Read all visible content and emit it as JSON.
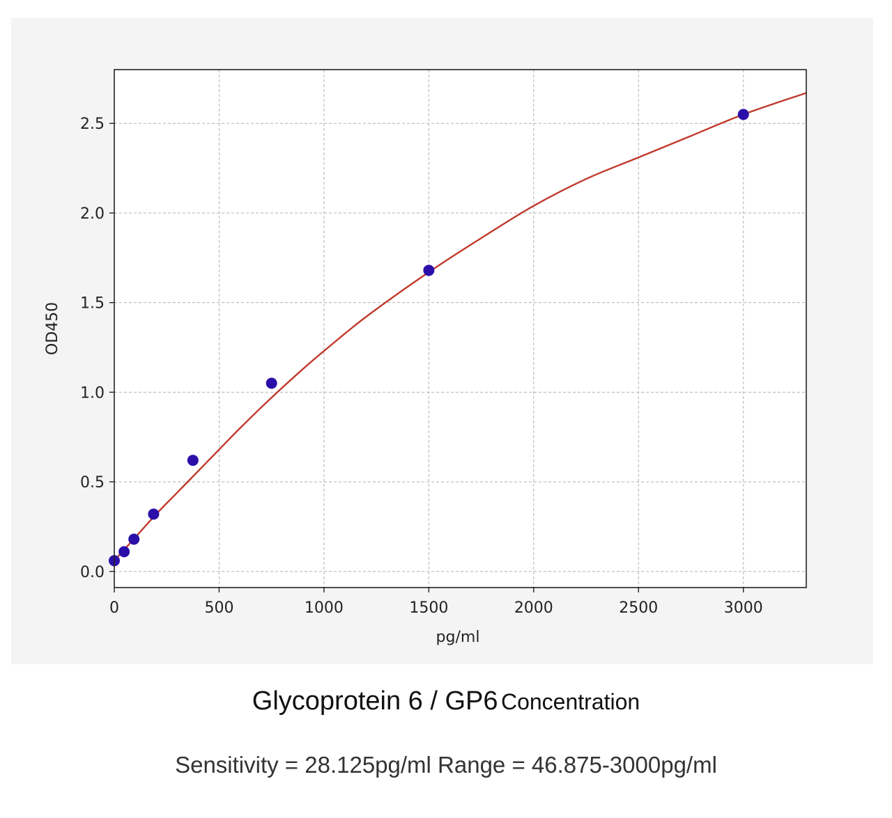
{
  "caption": {
    "title_main": "Glycoprotein 6 / GP6",
    "title_suffix": "Concentration",
    "note": "Sensitivity = 28.125pg/ml Range = 46.875-3000pg/ml"
  },
  "colors": {
    "panel_background": "#f4f4f4",
    "plot_background": "#ffffff",
    "grid": "#b0b0b0",
    "curve": "#c0392b",
    "points": "#2b0fa8"
  },
  "chart_data": {
    "type": "scatter",
    "xlabel": "pg/ml",
    "ylabel": "OD450",
    "xlim": [
      0,
      3300
    ],
    "ylim": [
      -0.09,
      2.8
    ],
    "x_ticks": [
      0,
      500,
      1000,
      1500,
      2000,
      2500,
      3000
    ],
    "x_tick_labels": [
      "0",
      "500",
      "1000",
      "1500",
      "2000",
      "2500",
      "3000"
    ],
    "y_ticks": [
      0.0,
      0.5,
      1.0,
      1.5,
      2.0,
      2.5
    ],
    "y_tick_labels": [
      "0.0",
      "0.5",
      "1.0",
      "1.5",
      "2.0",
      "2.5"
    ],
    "grid": true,
    "grid_style": "dashed",
    "points": [
      {
        "x": 0,
        "y": 0.06
      },
      {
        "x": 46.875,
        "y": 0.11
      },
      {
        "x": 93.75,
        "y": 0.18
      },
      {
        "x": 187.5,
        "y": 0.32
      },
      {
        "x": 375,
        "y": 0.62
      },
      {
        "x": 750,
        "y": 1.05
      },
      {
        "x": 1500,
        "y": 1.68
      },
      {
        "x": 3000,
        "y": 2.55
      }
    ],
    "fit_curve": [
      {
        "x": 0,
        "y": 0.06
      },
      {
        "x": 100,
        "y": 0.19
      },
      {
        "x": 200,
        "y": 0.32
      },
      {
        "x": 300,
        "y": 0.44
      },
      {
        "x": 400,
        "y": 0.56
      },
      {
        "x": 500,
        "y": 0.68
      },
      {
        "x": 600,
        "y": 0.8
      },
      {
        "x": 750,
        "y": 0.97
      },
      {
        "x": 900,
        "y": 1.13
      },
      {
        "x": 1000,
        "y": 1.23
      },
      {
        "x": 1200,
        "y": 1.42
      },
      {
        "x": 1500,
        "y": 1.67
      },
      {
        "x": 1750,
        "y": 1.86
      },
      {
        "x": 2000,
        "y": 2.04
      },
      {
        "x": 2250,
        "y": 2.19
      },
      {
        "x": 2500,
        "y": 2.31
      },
      {
        "x": 2750,
        "y": 2.43
      },
      {
        "x": 3000,
        "y": 2.55
      },
      {
        "x": 3300,
        "y": 2.67
      }
    ]
  }
}
